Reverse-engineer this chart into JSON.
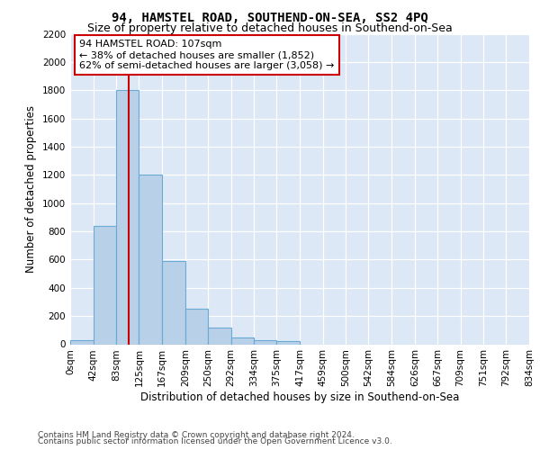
{
  "title": "94, HAMSTEL ROAD, SOUTHEND-ON-SEA, SS2 4PQ",
  "subtitle": "Size of property relative to detached houses in Southend-on-Sea",
  "xlabel": "Distribution of detached houses by size in Southend-on-Sea",
  "ylabel": "Number of detached properties",
  "footnote1": "Contains HM Land Registry data © Crown copyright and database right 2024.",
  "footnote2": "Contains public sector information licensed under the Open Government Licence v3.0.",
  "bar_edges": [
    0,
    42,
    83,
    125,
    167,
    209,
    250,
    292,
    334,
    375,
    417,
    459,
    500,
    542,
    584,
    626,
    667,
    709,
    751,
    792,
    834
  ],
  "bar_heights": [
    30,
    840,
    1800,
    1200,
    590,
    255,
    120,
    45,
    30,
    20,
    0,
    0,
    0,
    0,
    0,
    0,
    0,
    0,
    0,
    0
  ],
  "bar_color": "#b8d0e8",
  "bar_edgecolor": "#6aaad4",
  "vline_x": 107,
  "vline_color": "#cc0000",
  "annotation_text": "94 HAMSTEL ROAD: 107sqm\n← 38% of detached houses are smaller (1,852)\n62% of semi-detached houses are larger (3,058) →",
  "annotation_box_edgecolor": "#cc0000",
  "annotation_box_facecolor": "#ffffff",
  "ylim": [
    0,
    2200
  ],
  "yticks": [
    0,
    200,
    400,
    600,
    800,
    1000,
    1200,
    1400,
    1600,
    1800,
    2000,
    2200
  ],
  "bg_color": "#dce8f5",
  "title_fontsize": 10,
  "subtitle_fontsize": 9,
  "tick_label_fontsize": 7.5,
  "ylabel_fontsize": 8.5,
  "xlabel_fontsize": 8.5,
  "footnote_fontsize": 6.5
}
